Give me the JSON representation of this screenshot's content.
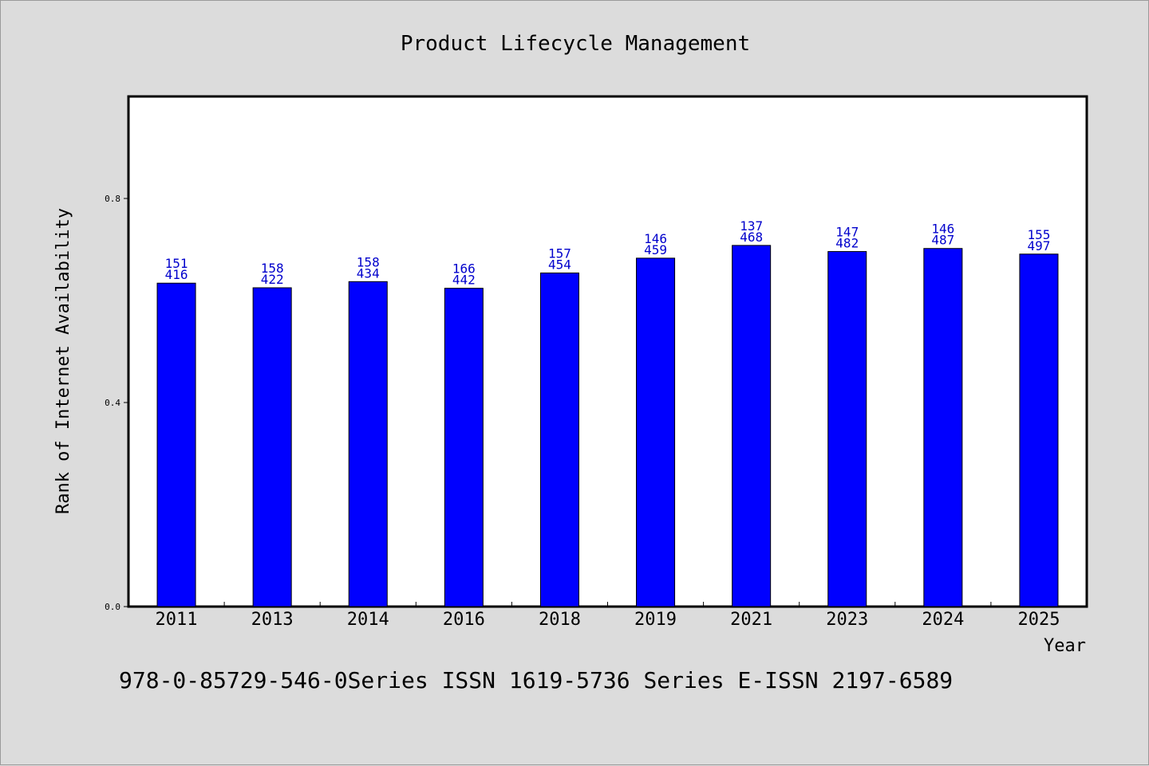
{
  "chart_data": {
    "type": "bar",
    "title": "Product Lifecycle Management",
    "xlabel": "Year",
    "ylabel": "Rank of Internet Availability",
    "categories": [
      "2011",
      "2013",
      "2014",
      "2016",
      "2018",
      "2019",
      "2021",
      "2023",
      "2024",
      "2025"
    ],
    "values": [
      0.634,
      0.625,
      0.637,
      0.624,
      0.654,
      0.683,
      0.708,
      0.696,
      0.702,
      0.691
    ],
    "data_labels": [
      [
        "151",
        "416"
      ],
      [
        "158",
        "422"
      ],
      [
        "158",
        "434"
      ],
      [
        "166",
        "442"
      ],
      [
        "157",
        "454"
      ],
      [
        "146",
        "459"
      ],
      [
        "137",
        "468"
      ],
      [
        "147",
        "482"
      ],
      [
        "146",
        "487"
      ],
      [
        "155",
        "497"
      ]
    ],
    "yticks": [
      "0.0",
      "0.4",
      "0.8"
    ],
    "ytick_values": [
      0.0,
      0.4,
      0.8
    ],
    "ylim": [
      0,
      1.0
    ],
    "grid": false,
    "legend": "none",
    "colors": {
      "bar": "#0000ff",
      "bar_edge": "#000000",
      "data_label": "#0000cc",
      "background": "#dcdcdc",
      "plot_area": "#ffffff"
    }
  },
  "footer": {
    "text": "978-0-85729-546-0Series ISSN 1619-5736 Series E-ISSN 2197-6589"
  }
}
